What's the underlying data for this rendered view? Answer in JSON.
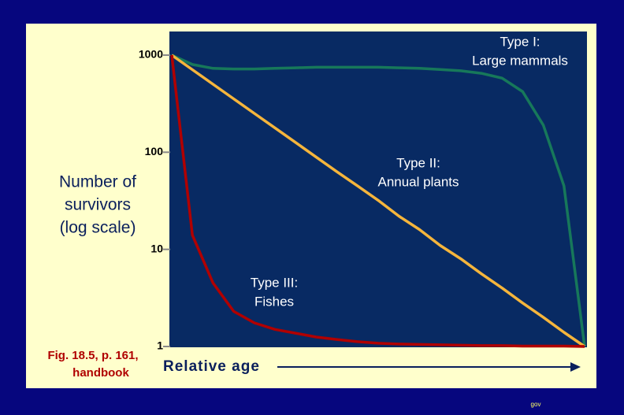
{
  "chart_data": {
    "type": "line",
    "y_label": [
      "Number of",
      "survivors",
      "(log scale)"
    ],
    "x_label": "Relative age",
    "caption": [
      "Fig. 18.5, p. 161,",
      "handbook"
    ],
    "footer": "gov",
    "log_y": true,
    "grid": false,
    "ylim": [
      1,
      1750
    ],
    "yticks": [
      1,
      10,
      100,
      1000
    ],
    "categories": [
      null,
      null,
      null,
      null,
      null,
      null,
      null,
      null,
      null,
      null,
      null,
      null,
      null,
      null,
      null,
      null,
      null,
      null,
      null,
      null,
      null
    ],
    "series": [
      {
        "label": [
          "Type I:",
          "Large mammals"
        ],
        "color": "#17785a",
        "values": [
          1000,
          800,
          730,
          720,
          720,
          730,
          740,
          750,
          750,
          750,
          750,
          740,
          730,
          710,
          690,
          650,
          580,
          420,
          190,
          45,
          1
        ]
      },
      {
        "label": [
          "Type II:",
          "Annual plants"
        ],
        "color": "#f5b53c",
        "values": [
          1000,
          708,
          501,
          355,
          251,
          178,
          126,
          89,
          63,
          45,
          32,
          22,
          16,
          11,
          8,
          5.6,
          4,
          2.8,
          2,
          1.4,
          1
        ]
      },
      {
        "label": [
          "Type III:",
          "Fishes"
        ],
        "color": "#b00000",
        "values": [
          1000,
          14,
          4.5,
          2.3,
          1.75,
          1.5,
          1.37,
          1.25,
          1.18,
          1.12,
          1.08,
          1.06,
          1.05,
          1.04,
          1.03,
          1.02,
          1.02,
          1.01,
          1.01,
          1.01,
          1
        ]
      }
    ]
  }
}
